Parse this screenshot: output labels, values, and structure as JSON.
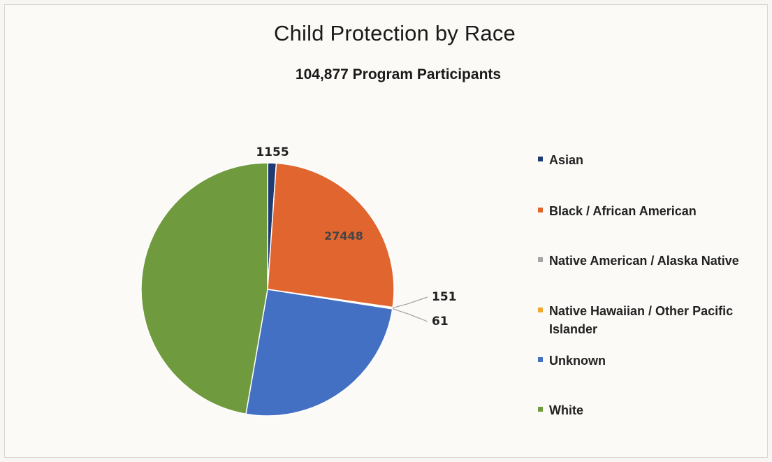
{
  "chart_data": {
    "type": "pie",
    "title": "Child Protection by Race",
    "subtitle": "104,877 Program Participants",
    "legend_position": "right",
    "slices": [
      {
        "label": "Asian",
        "value": 1155,
        "color": "#1f3b73",
        "data_label": "1155"
      },
      {
        "label": "Black / African American",
        "value": 27448,
        "color": "#e0652f",
        "data_label": "27448"
      },
      {
        "label": "Native American / Alaska Native",
        "value": 151,
        "color": "#a5a5a5",
        "data_label": "151"
      },
      {
        "label": "Native Hawaiian / Other Pacific Islander",
        "value": 61,
        "color": "#f0a830",
        "data_label": "61"
      },
      {
        "label": "Unknown",
        "value": 26500,
        "color": "#4470c4",
        "data_label": ""
      },
      {
        "label": "White",
        "value": 49562,
        "color": "#6f9a3e",
        "data_label": ""
      }
    ]
  }
}
